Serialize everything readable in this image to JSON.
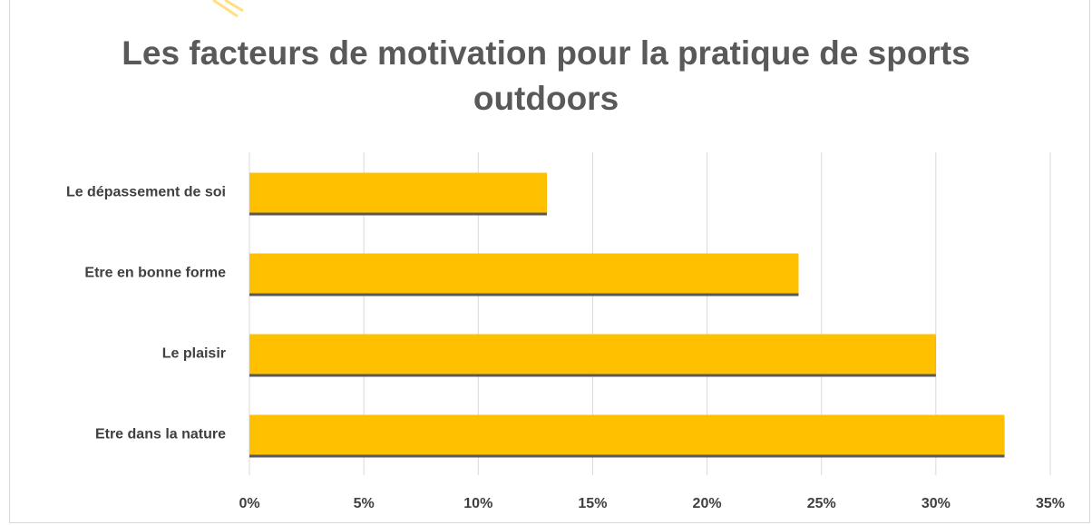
{
  "chart_data": {
    "type": "bar",
    "orientation": "horizontal",
    "title": "Les facteurs de motivation pour la pratique de sports outdoors",
    "categories": [
      "Le dépassement de soi",
      "Etre en bonne forme",
      "Le plaisir",
      "Etre dans la nature"
    ],
    "values": [
      13,
      24,
      30,
      33
    ],
    "color": "#FFC000",
    "xlim": [
      0,
      35
    ],
    "xticks": [
      {
        "value": 0,
        "label": "0%"
      },
      {
        "value": 5,
        "label": "5%"
      },
      {
        "value": 10,
        "label": "10%"
      },
      {
        "value": 15,
        "label": "15%"
      },
      {
        "value": 20,
        "label": "20%"
      },
      {
        "value": 25,
        "label": "25%"
      },
      {
        "value": 30,
        "label": "30%"
      },
      {
        "value": 35,
        "label": "35%"
      }
    ],
    "grid": true
  }
}
